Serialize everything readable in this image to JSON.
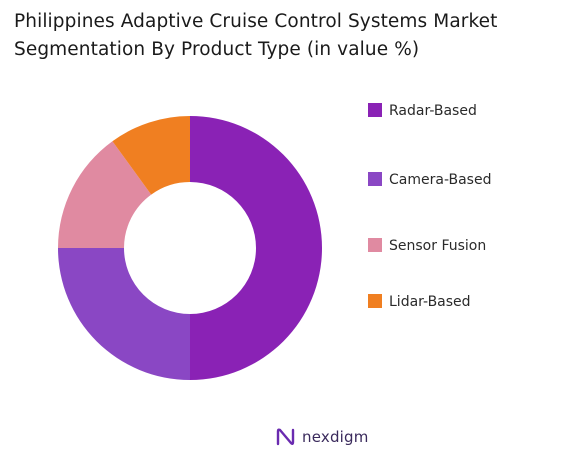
{
  "title_lines": [
    "Philippines Adaptive Cruise Control Systems Market",
    "Segmentation By Product Type (in value %)"
  ],
  "brand": {
    "name": "nexdigm",
    "logo": "nexdigm-n-logo-icon"
  },
  "chart_data": {
    "type": "pie",
    "variant": "donut",
    "title": "Philippines Adaptive Cruise Control Systems Market Segmentation By Product Type (in value %)",
    "categories": [
      "Radar-Based",
      "Camera-Based",
      "Sensor Fusion",
      "Lidar-Based"
    ],
    "values": [
      50,
      25,
      15,
      10
    ],
    "colors": [
      "#8a22b5",
      "#8a47c4",
      "#e08aa1",
      "#f07f21"
    ],
    "legend_position": "right",
    "start_angle_deg": 0,
    "direction": "clockwise",
    "inner_radius_ratio": 0.5
  }
}
